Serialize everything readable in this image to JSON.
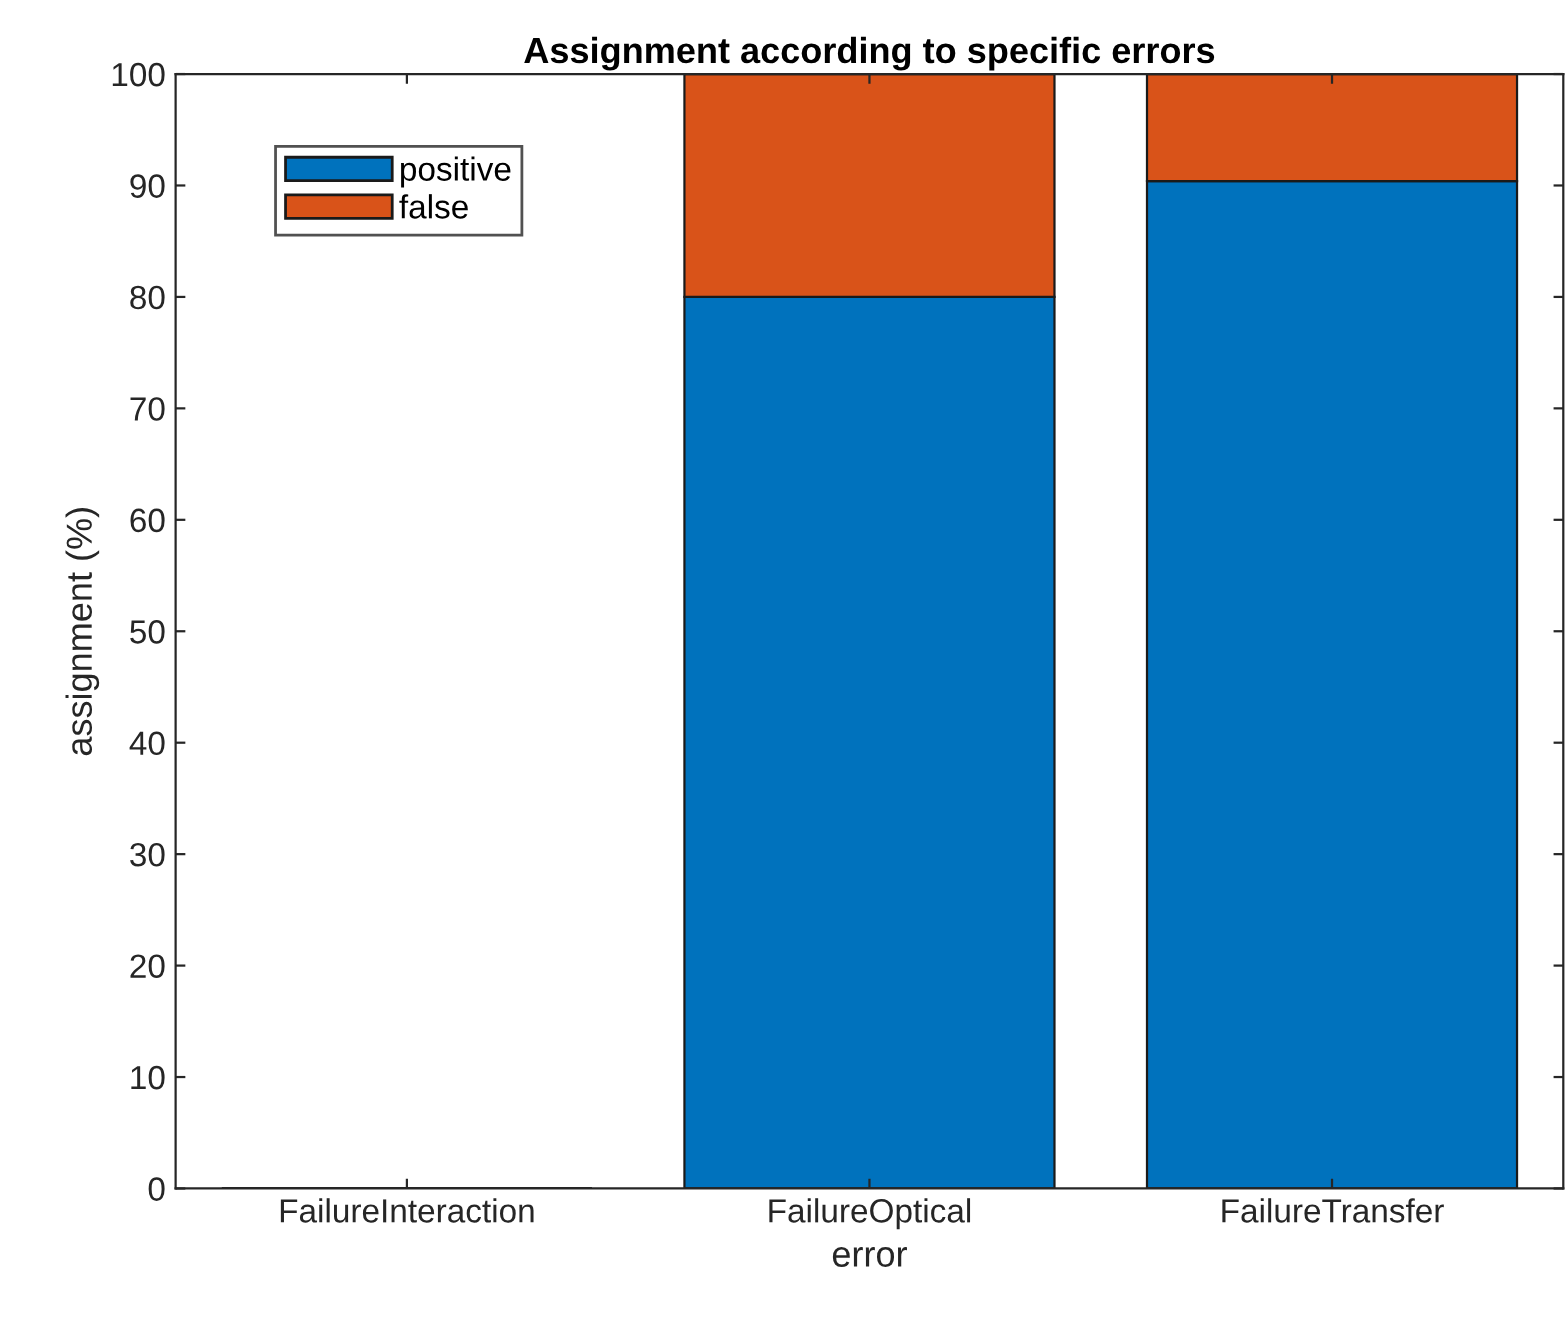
{
  "chart_data": {
    "type": "bar",
    "stacked": true,
    "title": "Assignment according to specific errors",
    "xlabel": "error",
    "ylabel": "assignment (%)",
    "categories": [
      "FailureInteraction",
      "FailureOptical",
      "FailureTransfer"
    ],
    "series": [
      {
        "name": "positive",
        "color": "#0072bd",
        "values": [
          0,
          80,
          90.4
        ]
      },
      {
        "name": "false",
        "color": "#d95319",
        "values": [
          0,
          20,
          9.6
        ]
      }
    ],
    "ylim": [
      0,
      100
    ],
    "yticks": [
      0,
      10,
      20,
      30,
      40,
      50,
      60,
      70,
      80,
      90,
      100
    ],
    "legend": "top left",
    "grid": false
  }
}
